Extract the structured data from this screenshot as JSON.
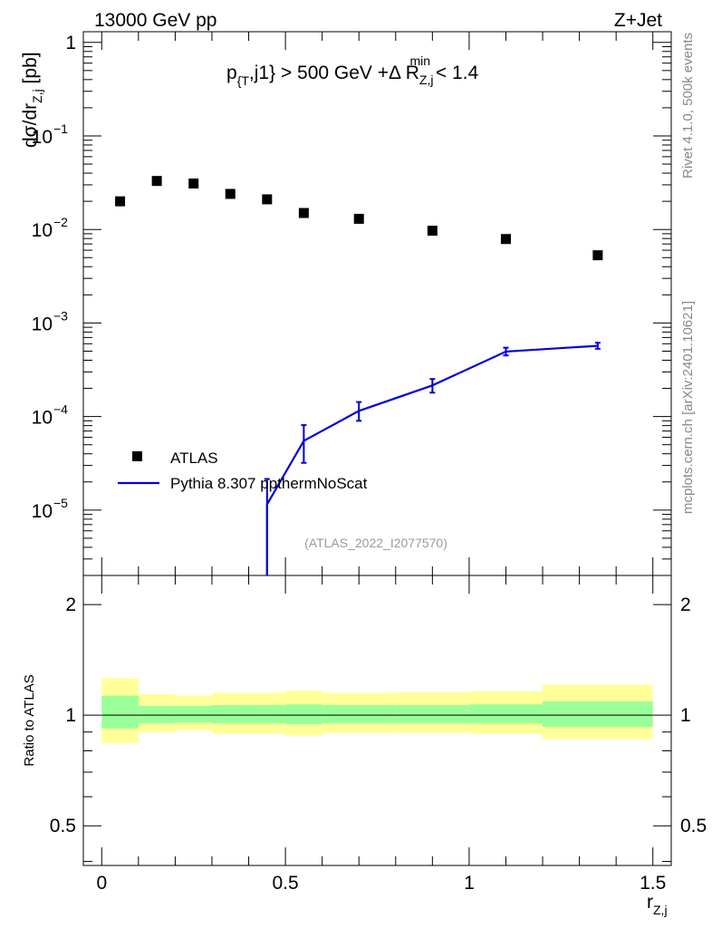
{
  "header": {
    "left": "13000 GeV pp",
    "right": "Z+Jet"
  },
  "side_labels": {
    "rivet": "Rivet 4.1.0,  500k events",
    "mcplots": "mcplots.cern.ch [arXiv:2401.10621]"
  },
  "colors": {
    "atlas": "#000000",
    "pythia": "#0000dd",
    "band_inner": "#99ff99",
    "band_outer": "#ffff99",
    "watermark": "#999999",
    "side_text": "#888888"
  },
  "chart_data": [
    {
      "type": "scatter",
      "panel": "main",
      "title_parts": {
        "p": "p",
        "p_sub": "{T",
        "mid": ",j1} > 500 GeV +",
        "delta": "Δ R",
        "r_sup": "min",
        "r_sub": "Z,j",
        "tail": " < 1.4"
      },
      "ylabel_parts": {
        "main": "dσ/dr",
        "sub": "Z,j",
        "unit": " [pb]"
      },
      "yscale": "log",
      "ylim": [
        2e-06,
        1.3
      ],
      "xlim": [
        -0.05,
        1.55
      ],
      "yticks_major": [
        {
          "v": 1,
          "mant": "1",
          "exp": ""
        },
        {
          "v": 0.1,
          "mant": "10",
          "exp": "−1"
        },
        {
          "v": 0.01,
          "mant": "10",
          "exp": "−2"
        },
        {
          "v": 0.001,
          "mant": "10",
          "exp": "−3"
        },
        {
          "v": 0.0001,
          "mant": "10",
          "exp": "−4"
        },
        {
          "v": 1e-05,
          "mant": "10",
          "exp": "−5"
        }
      ],
      "series": [
        {
          "name": "ATLAS",
          "style": "markers",
          "x": [
            0.05,
            0.15,
            0.25,
            0.35,
            0.45,
            0.55,
            0.7,
            0.9,
            1.1,
            1.35
          ],
          "y": [
            0.02,
            0.033,
            0.031,
            0.024,
            0.021,
            0.015,
            0.013,
            0.0097,
            0.0079,
            0.0053
          ]
        },
        {
          "name": "Pythia 8.307 ppthermNoScat",
          "style": "line",
          "x": [
            0.45,
            0.55,
            0.7,
            0.9,
            1.1,
            1.35
          ],
          "y": [
            1.15e-05,
            5.5e-05,
            0.000115,
            0.000215,
            0.000495,
            0.00057
          ],
          "yerr_low": [
            1.15e-05,
            2.3e-05,
            2.5e-05,
            3.5e-05,
            4.5e-05,
            4e-05
          ],
          "yerr_high": [
            1e-05,
            2.6e-05,
            2.8e-05,
            3.7e-05,
            5e-05,
            4.5e-05
          ]
        }
      ],
      "legend": [
        "ATLAS",
        "Pythia 8.307 ppthermNoScat"
      ],
      "legend_position": "lower-left",
      "annotation": "(ATLAS_2022_I2077570)"
    },
    {
      "type": "area",
      "panel": "ratio",
      "ylabel": "Ratio to ATLAS",
      "xlabel_parts": {
        "main": "r",
        "sub": "Z,j"
      },
      "xlim": [
        -0.05,
        1.55
      ],
      "ylim": [
        0.39,
        2.4
      ],
      "yticks": [
        2,
        1,
        0.5
      ],
      "yticklabels": [
        "2",
        "1",
        "0.5"
      ],
      "xticks": [
        0,
        0.5,
        1,
        1.5
      ],
      "xticklabels": [
        "0",
        "0.5",
        "1",
        "1.5"
      ],
      "bins": [
        {
          "x0": 0.0,
          "x1": 0.1,
          "inner": [
            0.92,
            1.13
          ],
          "outer": [
            0.84,
            1.26
          ]
        },
        {
          "x0": 0.1,
          "x1": 0.2,
          "inner": [
            0.95,
            1.06
          ],
          "outer": [
            0.9,
            1.14
          ]
        },
        {
          "x0": 0.2,
          "x1": 0.3,
          "inner": [
            0.955,
            1.06
          ],
          "outer": [
            0.91,
            1.13
          ]
        },
        {
          "x0": 0.3,
          "x1": 0.4,
          "inner": [
            0.95,
            1.065
          ],
          "outer": [
            0.89,
            1.15
          ]
        },
        {
          "x0": 0.4,
          "x1": 0.5,
          "inner": [
            0.95,
            1.065
          ],
          "outer": [
            0.89,
            1.15
          ]
        },
        {
          "x0": 0.5,
          "x1": 0.6,
          "inner": [
            0.945,
            1.07
          ],
          "outer": [
            0.88,
            1.165
          ]
        },
        {
          "x0": 0.6,
          "x1": 0.8,
          "inner": [
            0.95,
            1.065
          ],
          "outer": [
            0.895,
            1.15
          ]
        },
        {
          "x0": 0.8,
          "x1": 1.0,
          "inner": [
            0.95,
            1.065
          ],
          "outer": [
            0.895,
            1.155
          ]
        },
        {
          "x0": 1.0,
          "x1": 1.2,
          "inner": [
            0.95,
            1.07
          ],
          "outer": [
            0.89,
            1.16
          ]
        },
        {
          "x0": 1.2,
          "x1": 1.5,
          "inner": [
            0.93,
            1.09
          ],
          "outer": [
            0.86,
            1.21
          ]
        }
      ],
      "reference": 1.0
    }
  ]
}
